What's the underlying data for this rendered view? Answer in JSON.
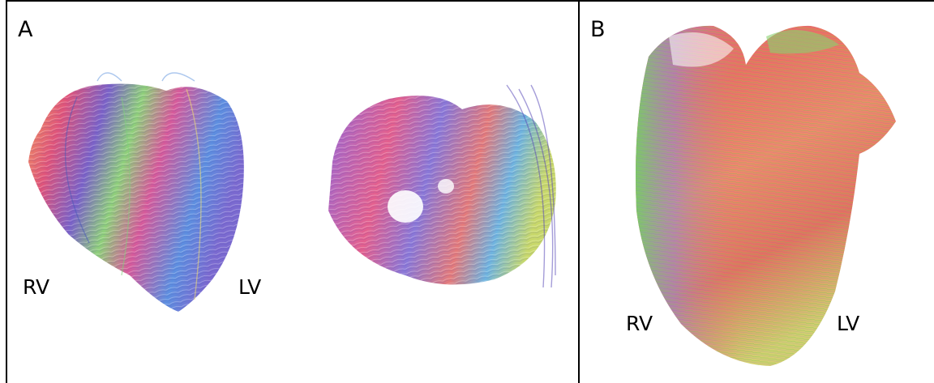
{
  "panels": [
    {
      "label": "A",
      "annotations": [
        "RV",
        "LV"
      ]
    },
    {
      "label": "B",
      "annotations": [
        "RV",
        "LV"
      ]
    }
  ]
}
